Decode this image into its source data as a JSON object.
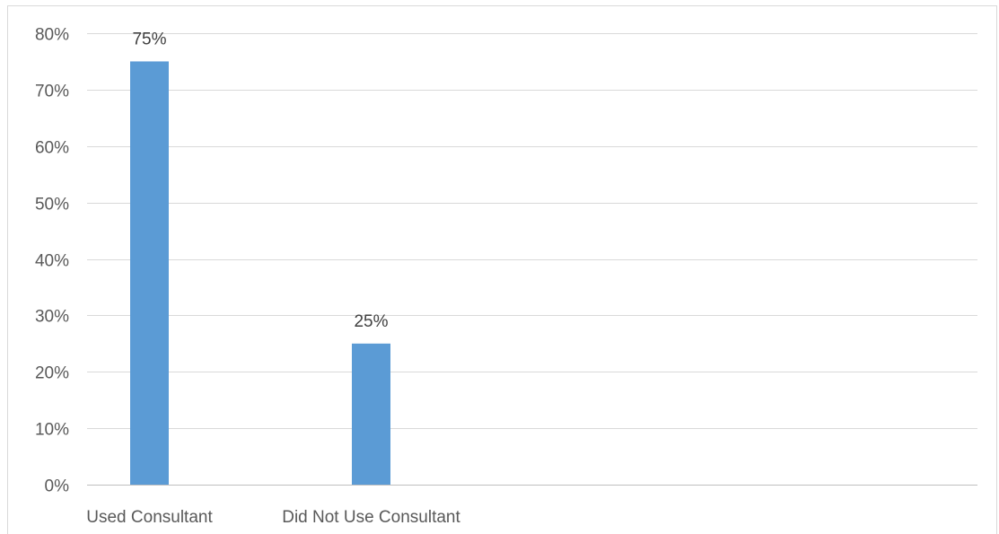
{
  "chart_data": {
    "type": "bar",
    "title": "",
    "xlabel": "",
    "ylabel": "",
    "categories": [
      "Used Consultant",
      "Did Not Use Consultant"
    ],
    "values": [
      75,
      25
    ],
    "data_labels": [
      "75%",
      "25%"
    ],
    "ylim": [
      0,
      80
    ],
    "yticks": [
      0,
      10,
      20,
      30,
      40,
      50,
      60,
      70,
      80
    ],
    "ytick_labels": [
      "0%",
      "10%",
      "20%",
      "30%",
      "40%",
      "50%",
      "60%",
      "70%",
      "80%"
    ],
    "grid": true,
    "legend": "none",
    "bar_color": "#5B9BD5",
    "grid_color": "#D9D9D9",
    "axis_color": "#BFBFBF",
    "border_color": "#D9D9D9"
  }
}
